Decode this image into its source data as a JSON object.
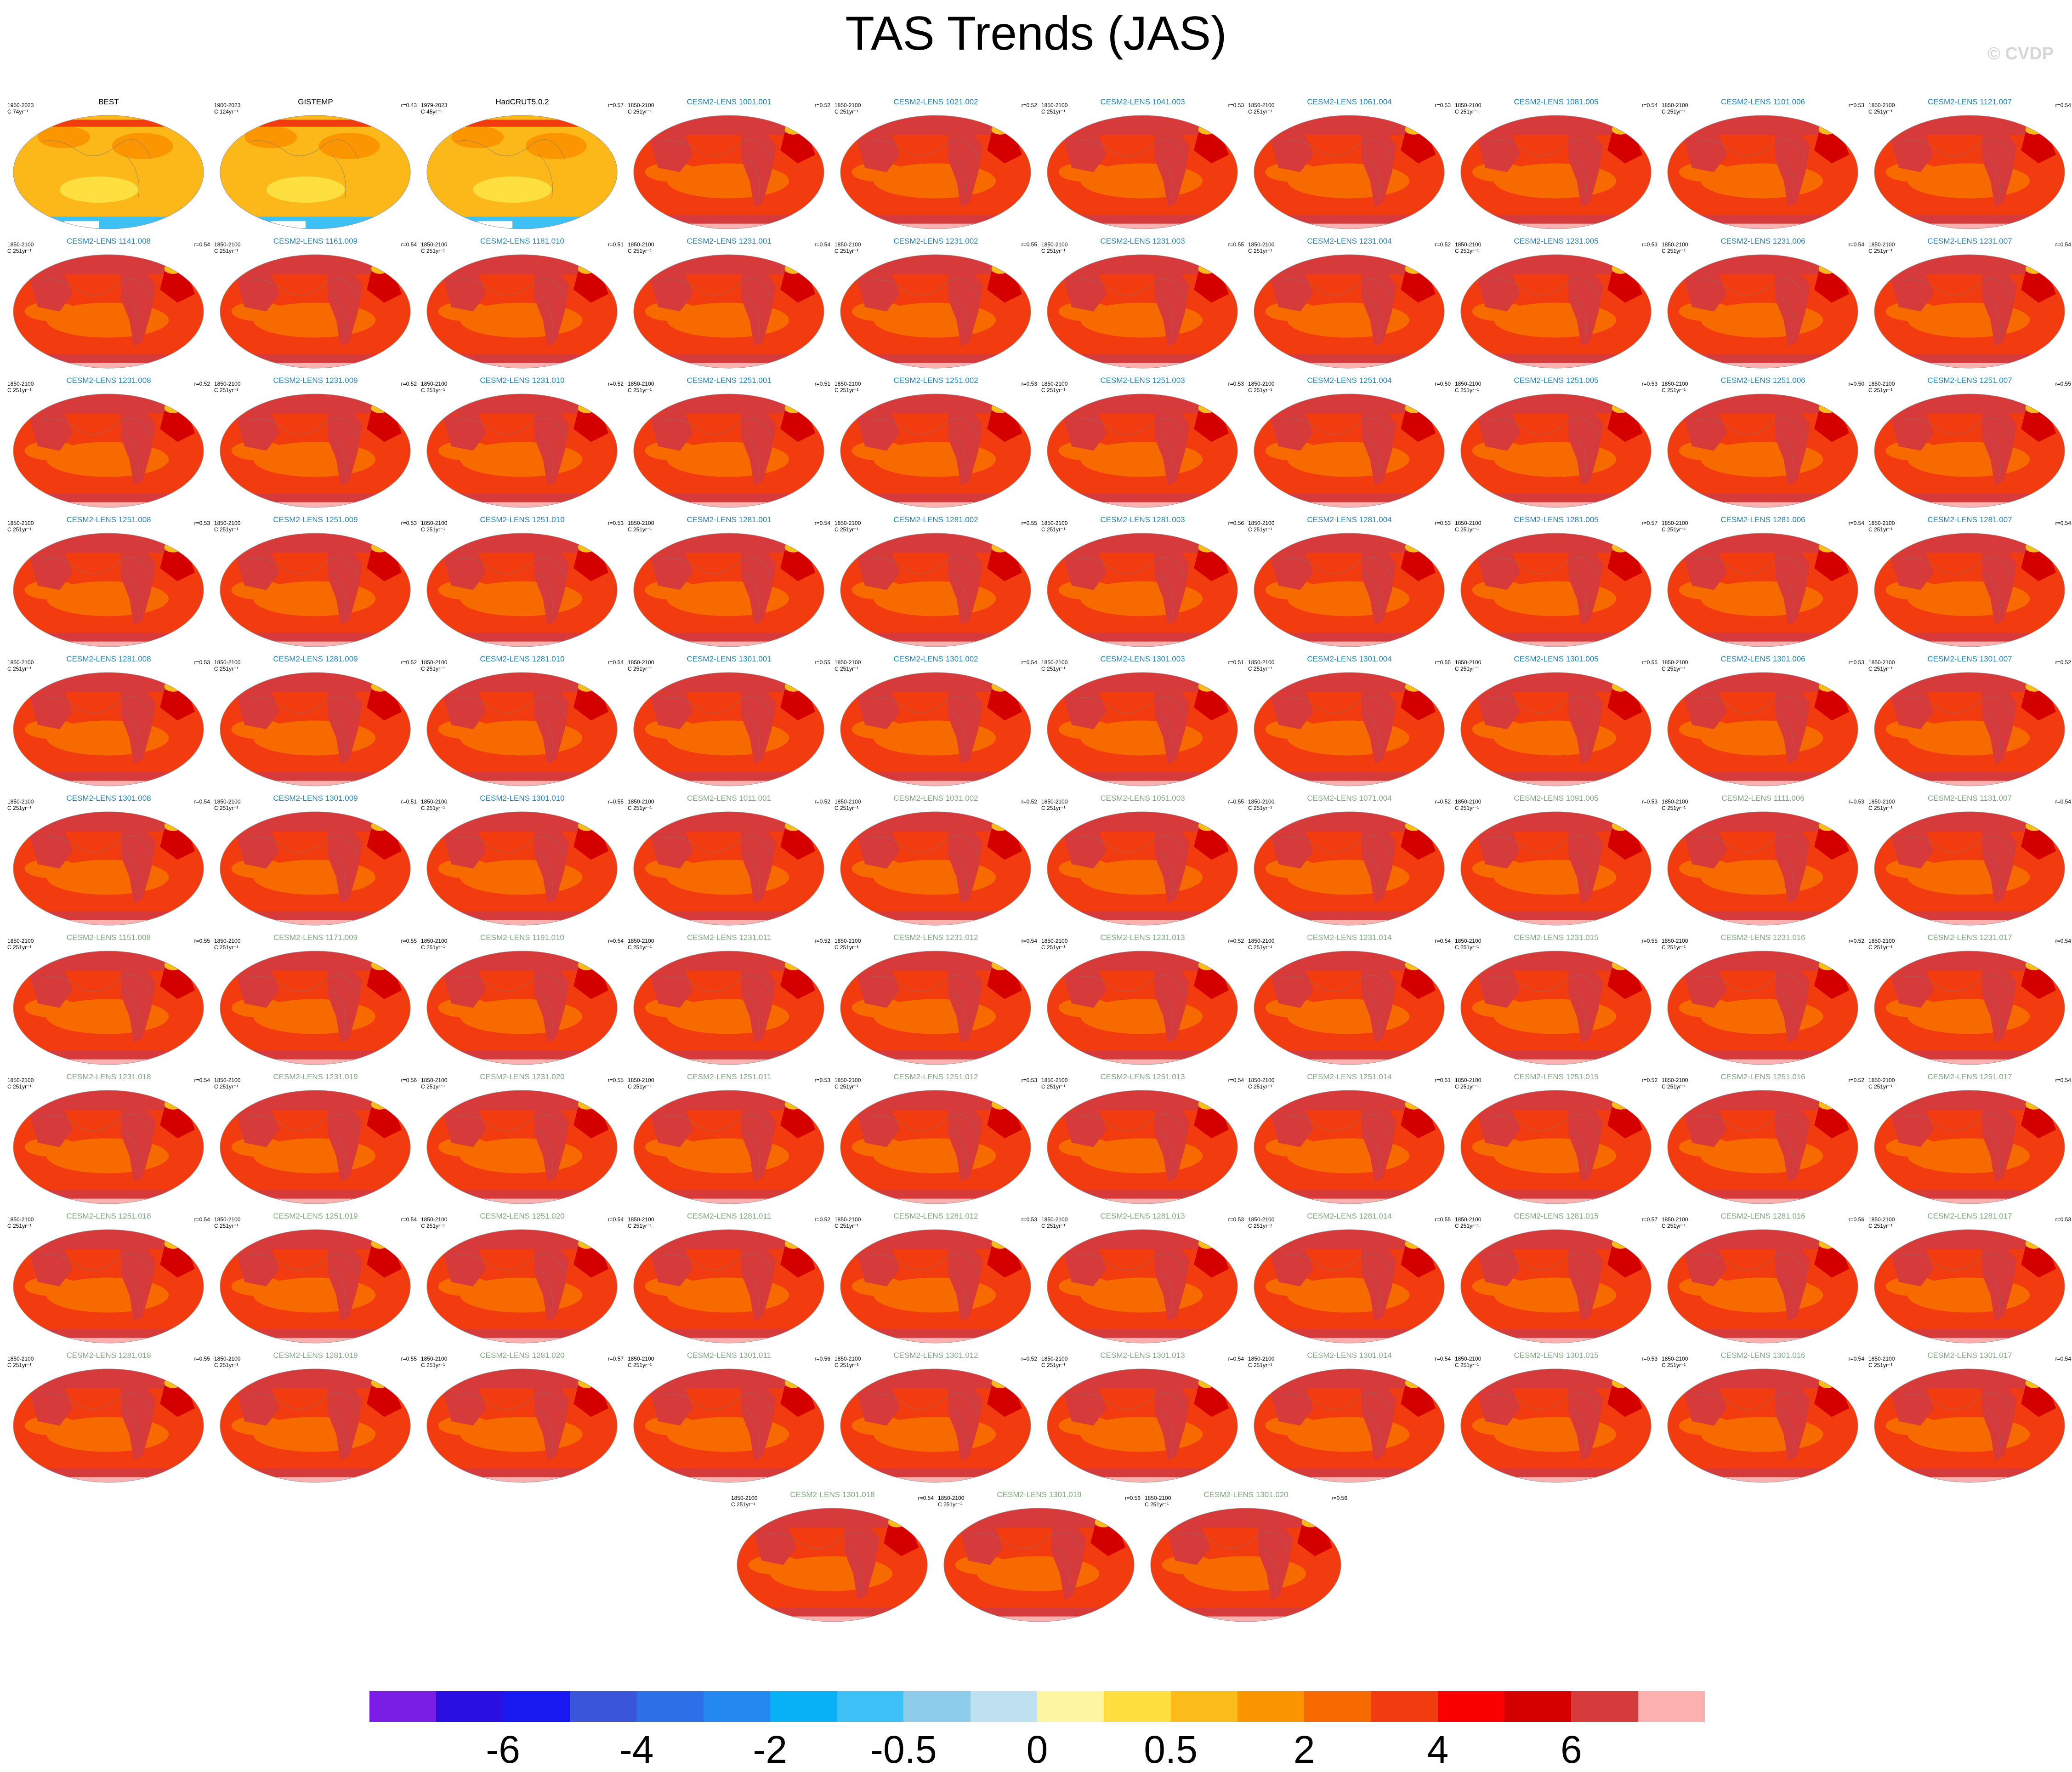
{
  "title": "TAS Trends (JAS)",
  "watermark": "© CVDP",
  "chart_data": {
    "type": "heatmap",
    "title": "TAS Trends (JAS)",
    "map_projection": "global robinson",
    "panels": [
      {
        "name": "BEST",
        "left": "1950-2023",
        "left2": "C 74yr⁻¹",
        "right": "",
        "kind": "obs"
      },
      {
        "name": "GISTEMP",
        "left": "1900-2023",
        "left2": "C 124yr⁻¹",
        "right": "r=0.43",
        "kind": "obs"
      },
      {
        "name": "HadCRUT5.0.2",
        "left": "1979-2023",
        "left2": "C 45yr⁻¹",
        "right": "r=0.57",
        "kind": "obs"
      },
      {
        "name": "CESM2-LENS 1001.001",
        "left": "1850-2100",
        "left2": "C 251yr⁻¹",
        "right": "r=0.52",
        "kind": "em"
      },
      {
        "name": "CESM2-LENS 1021.002",
        "left": "1850-2100",
        "left2": "C 251yr⁻¹",
        "right": "r=0.52",
        "kind": "em"
      },
      {
        "name": "CESM2-LENS 1041.003",
        "left": "1850-2100",
        "left2": "C 251yr⁻¹",
        "right": "r=0.53",
        "kind": "em"
      },
      {
        "name": "CESM2-LENS 1061.004",
        "left": "1850-2100",
        "left2": "C 251yr⁻¹",
        "right": "r=0.53",
        "kind": "em"
      },
      {
        "name": "CESM2-LENS 1081.005",
        "left": "1850-2100",
        "left2": "C 251yr⁻¹",
        "right": "r=0.54",
        "kind": "em"
      },
      {
        "name": "CESM2-LENS 1101.006",
        "left": "1850-2100",
        "left2": "C 251yr⁻¹",
        "right": "r=0.53",
        "kind": "em"
      },
      {
        "name": "CESM2-LENS 1121.007",
        "left": "1850-2100",
        "left2": "C 251yr⁻¹",
        "right": "r=0.54",
        "kind": "em"
      },
      {
        "name": "CESM2-LENS 1141.008",
        "left": "1850-2100",
        "left2": "C 251yr⁻¹",
        "right": "r=0.54",
        "kind": "em"
      },
      {
        "name": "CESM2-LENS 1161.009",
        "left": "1850-2100",
        "left2": "C 251yr⁻¹",
        "right": "r=0.54",
        "kind": "em"
      },
      {
        "name": "CESM2-LENS 1181.010",
        "left": "1850-2100",
        "left2": "C 251yr⁻¹",
        "right": "r=0.51",
        "kind": "em"
      },
      {
        "name": "CESM2-LENS 1231.001",
        "left": "1850-2100",
        "left2": "C 251yr⁻¹",
        "right": "r=0.54",
        "kind": "em"
      },
      {
        "name": "CESM2-LENS 1231.002",
        "left": "1850-2100",
        "left2": "C 251yr⁻¹",
        "right": "r=0.55",
        "kind": "em"
      },
      {
        "name": "CESM2-LENS 1231.003",
        "left": "1850-2100",
        "left2": "C 251yr⁻¹",
        "right": "r=0.55",
        "kind": "em"
      },
      {
        "name": "CESM2-LENS 1231.004",
        "left": "1850-2100",
        "left2": "C 251yr⁻¹",
        "right": "r=0.52",
        "kind": "em"
      },
      {
        "name": "CESM2-LENS 1231.005",
        "left": "1850-2100",
        "left2": "C 251yr⁻¹",
        "right": "r=0.53",
        "kind": "em"
      },
      {
        "name": "CESM2-LENS 1231.006",
        "left": "1850-2100",
        "left2": "C 251yr⁻¹",
        "right": "r=0.54",
        "kind": "em"
      },
      {
        "name": "CESM2-LENS 1231.007",
        "left": "1850-2100",
        "left2": "C 251yr⁻¹",
        "right": "r=0.54",
        "kind": "em"
      },
      {
        "name": "CESM2-LENS 1231.008",
        "left": "1850-2100",
        "left2": "C 251yr⁻¹",
        "right": "r=0.52",
        "kind": "em"
      },
      {
        "name": "CESM2-LENS 1231.009",
        "left": "1850-2100",
        "left2": "C 251yr⁻¹",
        "right": "r=0.52",
        "kind": "em"
      },
      {
        "name": "CESM2-LENS 1231.010",
        "left": "1850-2100",
        "left2": "C 251yr⁻¹",
        "right": "r=0.52",
        "kind": "em"
      },
      {
        "name": "CESM2-LENS 1251.001",
        "left": "1850-2100",
        "left2": "C 251yr⁻¹",
        "right": "r=0.51",
        "kind": "em"
      },
      {
        "name": "CESM2-LENS 1251.002",
        "left": "1850-2100",
        "left2": "C 251yr⁻¹",
        "right": "r=0.53",
        "kind": "em"
      },
      {
        "name": "CESM2-LENS 1251.003",
        "left": "1850-2100",
        "left2": "C 251yr⁻¹",
        "right": "r=0.53",
        "kind": "em"
      },
      {
        "name": "CESM2-LENS 1251.004",
        "left": "1850-2100",
        "left2": "C 251yr⁻¹",
        "right": "r=0.50",
        "kind": "em"
      },
      {
        "name": "CESM2-LENS 1251.005",
        "left": "1850-2100",
        "left2": "C 251yr⁻¹",
        "right": "r=0.53",
        "kind": "em"
      },
      {
        "name": "CESM2-LENS 1251.006",
        "left": "1850-2100",
        "left2": "C 251yr⁻¹",
        "right": "r=0.50",
        "kind": "em"
      },
      {
        "name": "CESM2-LENS 1251.007",
        "left": "1850-2100",
        "left2": "C 251yr⁻¹",
        "right": "r=0.55",
        "kind": "em"
      },
      {
        "name": "CESM2-LENS 1251.008",
        "left": "1850-2100",
        "left2": "C 251yr⁻¹",
        "right": "r=0.53",
        "kind": "em"
      },
      {
        "name": "CESM2-LENS 1251.009",
        "left": "1850-2100",
        "left2": "C 251yr⁻¹",
        "right": "r=0.53",
        "kind": "em"
      },
      {
        "name": "CESM2-LENS 1251.010",
        "left": "1850-2100",
        "left2": "C 251yr⁻¹",
        "right": "r=0.53",
        "kind": "em"
      },
      {
        "name": "CESM2-LENS 1281.001",
        "left": "1850-2100",
        "left2": "C 251yr⁻¹",
        "right": "r=0.54",
        "kind": "em"
      },
      {
        "name": "CESM2-LENS 1281.002",
        "left": "1850-2100",
        "left2": "C 251yr⁻¹",
        "right": "r=0.55",
        "kind": "em"
      },
      {
        "name": "CESM2-LENS 1281.003",
        "left": "1850-2100",
        "left2": "C 251yr⁻¹",
        "right": "r=0.56",
        "kind": "em"
      },
      {
        "name": "CESM2-LENS 1281.004",
        "left": "1850-2100",
        "left2": "C 251yr⁻¹",
        "right": "r=0.53",
        "kind": "em"
      },
      {
        "name": "CESM2-LENS 1281.005",
        "left": "1850-2100",
        "left2": "C 251yr⁻¹",
        "right": "r=0.57",
        "kind": "em"
      },
      {
        "name": "CESM2-LENS 1281.006",
        "left": "1850-2100",
        "left2": "C 251yr⁻¹",
        "right": "r=0.54",
        "kind": "em"
      },
      {
        "name": "CESM2-LENS 1281.007",
        "left": "1850-2100",
        "left2": "C 251yr⁻¹",
        "right": "r=0.54",
        "kind": "em"
      },
      {
        "name": "CESM2-LENS 1281.008",
        "left": "1850-2100",
        "left2": "C 251yr⁻¹",
        "right": "r=0.53",
        "kind": "em"
      },
      {
        "name": "CESM2-LENS 1281.009",
        "left": "1850-2100",
        "left2": "C 251yr⁻¹",
        "right": "r=0.52",
        "kind": "em"
      },
      {
        "name": "CESM2-LENS 1281.010",
        "left": "1850-2100",
        "left2": "C 251yr⁻¹",
        "right": "r=0.54",
        "kind": "em"
      },
      {
        "name": "CESM2-LENS 1301.001",
        "left": "1850-2100",
        "left2": "C 251yr⁻¹",
        "right": "r=0.55",
        "kind": "em"
      },
      {
        "name": "CESM2-LENS 1301.002",
        "left": "1850-2100",
        "left2": "C 251yr⁻¹",
        "right": "r=0.54",
        "kind": "em"
      },
      {
        "name": "CESM2-LENS 1301.003",
        "left": "1850-2100",
        "left2": "C 251yr⁻¹",
        "right": "r=0.51",
        "kind": "em"
      },
      {
        "name": "CESM2-LENS 1301.004",
        "left": "1850-2100",
        "left2": "C 251yr⁻¹",
        "right": "r=0.55",
        "kind": "em"
      },
      {
        "name": "CESM2-LENS 1301.005",
        "left": "1850-2100",
        "left2": "C 251yr⁻¹",
        "right": "r=0.55",
        "kind": "em"
      },
      {
        "name": "CESM2-LENS 1301.006",
        "left": "1850-2100",
        "left2": "C 251yr⁻¹",
        "right": "r=0.53",
        "kind": "em"
      },
      {
        "name": "CESM2-LENS 1301.007",
        "left": "1850-2100",
        "left2": "C 251yr⁻¹",
        "right": "r=0.52",
        "kind": "em"
      },
      {
        "name": "CESM2-LENS 1301.008",
        "left": "1850-2100",
        "left2": "C 251yr⁻¹",
        "right": "r=0.54",
        "kind": "em"
      },
      {
        "name": "CESM2-LENS 1301.009",
        "left": "1850-2100",
        "left2": "C 251yr⁻¹",
        "right": "r=0.51",
        "kind": "em"
      },
      {
        "name": "CESM2-LENS 1301.010",
        "left": "1850-2100",
        "left2": "C 251yr⁻¹",
        "right": "r=0.55",
        "kind": "em"
      },
      {
        "name": "CESM2-LENS 1011.001",
        "left": "1850-2100",
        "left2": "C 251yr⁻¹",
        "right": "r=0.52",
        "kind": "em2"
      },
      {
        "name": "CESM2-LENS 1031.002",
        "left": "1850-2100",
        "left2": "C 251yr⁻¹",
        "right": "r=0.52",
        "kind": "em2"
      },
      {
        "name": "CESM2-LENS 1051.003",
        "left": "1850-2100",
        "left2": "C 251yr⁻¹",
        "right": "r=0.55",
        "kind": "em2"
      },
      {
        "name": "CESM2-LENS 1071.004",
        "left": "1850-2100",
        "left2": "C 251yr⁻¹",
        "right": "r=0.52",
        "kind": "em2"
      },
      {
        "name": "CESM2-LENS 1091.005",
        "left": "1850-2100",
        "left2": "C 251yr⁻¹",
        "right": "r=0.53",
        "kind": "em2"
      },
      {
        "name": "CESM2-LENS 1111.006",
        "left": "1850-2100",
        "left2": "C 251yr⁻¹",
        "right": "r=0.53",
        "kind": "em2"
      },
      {
        "name": "CESM2-LENS 1131.007",
        "left": "1850-2100",
        "left2": "C 251yr⁻¹",
        "right": "r=0.54",
        "kind": "em2"
      },
      {
        "name": "CESM2-LENS 1151.008",
        "left": "1850-2100",
        "left2": "C 251yr⁻¹",
        "right": "r=0.55",
        "kind": "em2"
      },
      {
        "name": "CESM2-LENS 1171.009",
        "left": "1850-2100",
        "left2": "C 251yr⁻¹",
        "right": "r=0.55",
        "kind": "em2"
      },
      {
        "name": "CESM2-LENS 1191.010",
        "left": "1850-2100",
        "left2": "C 251yr⁻¹",
        "right": "r=0.54",
        "kind": "em2"
      },
      {
        "name": "CESM2-LENS 1231.011",
        "left": "1850-2100",
        "left2": "C 251yr⁻¹",
        "right": "r=0.52",
        "kind": "em2"
      },
      {
        "name": "CESM2-LENS 1231.012",
        "left": "1850-2100",
        "left2": "C 251yr⁻¹",
        "right": "r=0.54",
        "kind": "em2"
      },
      {
        "name": "CESM2-LENS 1231.013",
        "left": "1850-2100",
        "left2": "C 251yr⁻¹",
        "right": "r=0.52",
        "kind": "em2"
      },
      {
        "name": "CESM2-LENS 1231.014",
        "left": "1850-2100",
        "left2": "C 251yr⁻¹",
        "right": "r=0.54",
        "kind": "em2"
      },
      {
        "name": "CESM2-LENS 1231.015",
        "left": "1850-2100",
        "left2": "C 251yr⁻¹",
        "right": "r=0.55",
        "kind": "em2"
      },
      {
        "name": "CESM2-LENS 1231.016",
        "left": "1850-2100",
        "left2": "C 251yr⁻¹",
        "right": "r=0.52",
        "kind": "em2"
      },
      {
        "name": "CESM2-LENS 1231.017",
        "left": "1850-2100",
        "left2": "C 251yr⁻¹",
        "right": "r=0.54",
        "kind": "em2"
      },
      {
        "name": "CESM2-LENS 1231.018",
        "left": "1850-2100",
        "left2": "C 251yr⁻¹",
        "right": "r=0.54",
        "kind": "em2"
      },
      {
        "name": "CESM2-LENS 1231.019",
        "left": "1850-2100",
        "left2": "C 251yr⁻¹",
        "right": "r=0.56",
        "kind": "em2"
      },
      {
        "name": "CESM2-LENS 1231.020",
        "left": "1850-2100",
        "left2": "C 251yr⁻¹",
        "right": "r=0.55",
        "kind": "em2"
      },
      {
        "name": "CESM2-LENS 1251.011",
        "left": "1850-2100",
        "left2": "C 251yr⁻¹",
        "right": "r=0.53",
        "kind": "em2"
      },
      {
        "name": "CESM2-LENS 1251.012",
        "left": "1850-2100",
        "left2": "C 251yr⁻¹",
        "right": "r=0.53",
        "kind": "em2"
      },
      {
        "name": "CESM2-LENS 1251.013",
        "left": "1850-2100",
        "left2": "C 251yr⁻¹",
        "right": "r=0.54",
        "kind": "em2"
      },
      {
        "name": "CESM2-LENS 1251.014",
        "left": "1850-2100",
        "left2": "C 251yr⁻¹",
        "right": "r=0.51",
        "kind": "em2"
      },
      {
        "name": "CESM2-LENS 1251.015",
        "left": "1850-2100",
        "left2": "C 251yr⁻¹",
        "right": "r=0.52",
        "kind": "em2"
      },
      {
        "name": "CESM2-LENS 1251.016",
        "left": "1850-2100",
        "left2": "C 251yr⁻¹",
        "right": "r=0.52",
        "kind": "em2"
      },
      {
        "name": "CESM2-LENS 1251.017",
        "left": "1850-2100",
        "left2": "C 251yr⁻¹",
        "right": "r=0.54",
        "kind": "em2"
      },
      {
        "name": "CESM2-LENS 1251.018",
        "left": "1850-2100",
        "left2": "C 251yr⁻¹",
        "right": "r=0.54",
        "kind": "em2"
      },
      {
        "name": "CESM2-LENS 1251.019",
        "left": "1850-2100",
        "left2": "C 251yr⁻¹",
        "right": "r=0.54",
        "kind": "em2"
      },
      {
        "name": "CESM2-LENS 1251.020",
        "left": "1850-2100",
        "left2": "C 251yr⁻¹",
        "right": "r=0.54",
        "kind": "em2"
      },
      {
        "name": "CESM2-LENS 1281.011",
        "left": "1850-2100",
        "left2": "C 251yr⁻¹",
        "right": "r=0.52",
        "kind": "em2"
      },
      {
        "name": "CESM2-LENS 1281.012",
        "left": "1850-2100",
        "left2": "C 251yr⁻¹",
        "right": "r=0.53",
        "kind": "em2"
      },
      {
        "name": "CESM2-LENS 1281.013",
        "left": "1850-2100",
        "left2": "C 251yr⁻¹",
        "right": "r=0.53",
        "kind": "em2"
      },
      {
        "name": "CESM2-LENS 1281.014",
        "left": "1850-2100",
        "left2": "C 251yr⁻¹",
        "right": "r=0.55",
        "kind": "em2"
      },
      {
        "name": "CESM2-LENS 1281.015",
        "left": "1850-2100",
        "left2": "C 251yr⁻¹",
        "right": "r=0.57",
        "kind": "em2"
      },
      {
        "name": "CESM2-LENS 1281.016",
        "left": "1850-2100",
        "left2": "C 251yr⁻¹",
        "right": "r=0.56",
        "kind": "em2"
      },
      {
        "name": "CESM2-LENS 1281.017",
        "left": "1850-2100",
        "left2": "C 251yr⁻¹",
        "right": "r=0.53",
        "kind": "em2"
      },
      {
        "name": "CESM2-LENS 1281.018",
        "left": "1850-2100",
        "left2": "C 251yr⁻¹",
        "right": "r=0.55",
        "kind": "em2"
      },
      {
        "name": "CESM2-LENS 1281.019",
        "left": "1850-2100",
        "left2": "C 251yr⁻¹",
        "right": "r=0.55",
        "kind": "em2"
      },
      {
        "name": "CESM2-LENS 1281.020",
        "left": "1850-2100",
        "left2": "C 251yr⁻¹",
        "right": "r=0.57",
        "kind": "em2"
      },
      {
        "name": "CESM2-LENS 1301.011",
        "left": "1850-2100",
        "left2": "C 251yr⁻¹",
        "right": "r=0.56",
        "kind": "em2"
      },
      {
        "name": "CESM2-LENS 1301.012",
        "left": "1850-2100",
        "left2": "C 251yr⁻¹",
        "right": "r=0.52",
        "kind": "em2"
      },
      {
        "name": "CESM2-LENS 1301.013",
        "left": "1850-2100",
        "left2": "C 251yr⁻¹",
        "right": "r=0.54",
        "kind": "em2"
      },
      {
        "name": "CESM2-LENS 1301.014",
        "left": "1850-2100",
        "left2": "C 251yr⁻¹",
        "right": "r=0.54",
        "kind": "em2"
      },
      {
        "name": "CESM2-LENS 1301.015",
        "left": "1850-2100",
        "left2": "C 251yr⁻¹",
        "right": "r=0.53",
        "kind": "em2"
      },
      {
        "name": "CESM2-LENS 1301.016",
        "left": "1850-2100",
        "left2": "C 251yr⁻¹",
        "right": "r=0.54",
        "kind": "em2"
      },
      {
        "name": "CESM2-LENS 1301.017",
        "left": "1850-2100",
        "left2": "C 251yr⁻¹",
        "right": "r=0.54",
        "kind": "em2"
      },
      {
        "name": "CESM2-LENS 1301.018",
        "left": "1850-2100",
        "left2": "C 251yr⁻¹",
        "right": "r=0.54",
        "kind": "em2"
      },
      {
        "name": "CESM2-LENS 1301.019",
        "left": "1850-2100",
        "left2": "C 251yr⁻¹",
        "right": "r=0.56",
        "kind": "em2"
      },
      {
        "name": "CESM2-LENS 1301.020",
        "left": "1850-2100",
        "left2": "C 251yr⁻¹",
        "right": "r=0.56",
        "kind": "em2"
      }
    ],
    "colorbar": {
      "colors": [
        "#7a1ee6",
        "#2a10e0",
        "#1818f0",
        "#3a55d8",
        "#2d6fe6",
        "#2389f0",
        "#08b0f5",
        "#3cc0f5",
        "#8ccbea",
        "#bfe0f0",
        "#fdf5a0",
        "#fde040",
        "#fbbb18",
        "#fb9600",
        "#f66a00",
        "#f23c10",
        "#fb0000",
        "#d40000",
        "#d63a3a",
        "#fdb0b0"
      ],
      "tick_labels": [
        "-6",
        "-4",
        "-2",
        "-0.5",
        "0",
        "0.5",
        "2",
        "4",
        "6"
      ]
    }
  }
}
